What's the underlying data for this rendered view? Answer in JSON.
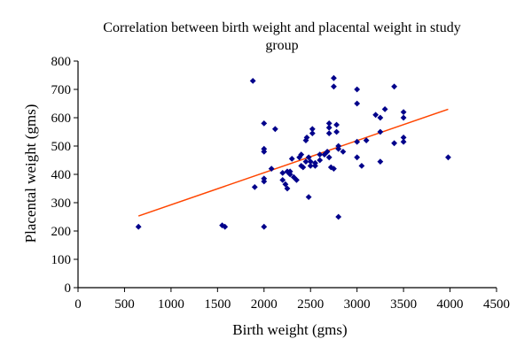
{
  "chart_data": {
    "type": "scatter",
    "title_lines": [
      "Correlation between birth weight and placental weight in study",
      "group"
    ],
    "xlabel": "Birth weight (gms)",
    "ylabel": "Placental weight (gms)",
    "xlim": [
      0,
      4500
    ],
    "ylim": [
      0,
      800
    ],
    "xticks": [
      0,
      500,
      1000,
      1500,
      2000,
      2500,
      3000,
      3500,
      4000,
      4500
    ],
    "yticks": [
      0,
      100,
      200,
      300,
      400,
      500,
      600,
      700,
      800
    ],
    "grid": false,
    "legend": "none",
    "colors": {
      "points": "#00008b",
      "trendline": "#ff4500",
      "axis": "#000000"
    },
    "series": [
      {
        "points": [
          [
            650,
            215
          ],
          [
            1550,
            220
          ],
          [
            1580,
            215
          ],
          [
            1880,
            730
          ],
          [
            1900,
            355
          ],
          [
            2000,
            215
          ],
          [
            2000,
            375
          ],
          [
            2000,
            385
          ],
          [
            2000,
            480
          ],
          [
            2000,
            490
          ],
          [
            2000,
            580
          ],
          [
            2080,
            420
          ],
          [
            2120,
            560
          ],
          [
            2200,
            380
          ],
          [
            2200,
            405
          ],
          [
            2230,
            365
          ],
          [
            2250,
            350
          ],
          [
            2250,
            410
          ],
          [
            2280,
            400
          ],
          [
            2280,
            410
          ],
          [
            2300,
            455
          ],
          [
            2320,
            390
          ],
          [
            2350,
            380
          ],
          [
            2380,
            460
          ],
          [
            2400,
            470
          ],
          [
            2400,
            430
          ],
          [
            2420,
            425
          ],
          [
            2450,
            445
          ],
          [
            2450,
            520
          ],
          [
            2460,
            530
          ],
          [
            2480,
            320
          ],
          [
            2480,
            460
          ],
          [
            2500,
            445
          ],
          [
            2500,
            430
          ],
          [
            2520,
            545
          ],
          [
            2520,
            560
          ],
          [
            2550,
            440
          ],
          [
            2550,
            430
          ],
          [
            2600,
            450
          ],
          [
            2600,
            470
          ],
          [
            2650,
            470
          ],
          [
            2680,
            480
          ],
          [
            2700,
            460
          ],
          [
            2700,
            545
          ],
          [
            2700,
            565
          ],
          [
            2700,
            580
          ],
          [
            2720,
            425
          ],
          [
            2750,
            740
          ],
          [
            2750,
            710
          ],
          [
            2750,
            420
          ],
          [
            2780,
            575
          ],
          [
            2780,
            550
          ],
          [
            2800,
            500
          ],
          [
            2800,
            490
          ],
          [
            2800,
            250
          ],
          [
            2850,
            480
          ],
          [
            3000,
            700
          ],
          [
            3000,
            650
          ],
          [
            3000,
            515
          ],
          [
            3000,
            460
          ],
          [
            3050,
            430
          ],
          [
            3100,
            520
          ],
          [
            3200,
            610
          ],
          [
            3250,
            550
          ],
          [
            3250,
            600
          ],
          [
            3250,
            445
          ],
          [
            3300,
            630
          ],
          [
            3400,
            710
          ],
          [
            3400,
            510
          ],
          [
            3500,
            620
          ],
          [
            3500,
            600
          ],
          [
            3500,
            530
          ],
          [
            3500,
            515
          ],
          [
            3980,
            460
          ]
        ],
        "trendline": {
          "x": [
            650,
            3980
          ],
          "y": [
            253,
            630
          ]
        }
      }
    ]
  }
}
